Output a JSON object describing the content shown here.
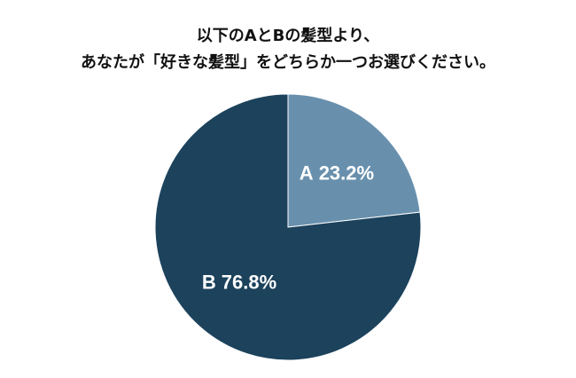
{
  "chart_data": {
    "type": "pie",
    "title": [
      "以下のAとBの髪型より、",
      "あなたが「好きな髪型」をどちらか一つお選びください。"
    ],
    "categories": [
      "A",
      "B"
    ],
    "values": [
      23.2,
      76.8
    ],
    "value_labels": [
      "23.2%",
      "76.8%"
    ],
    "colors": [
      "#6890ad",
      "#1c425c"
    ]
  }
}
